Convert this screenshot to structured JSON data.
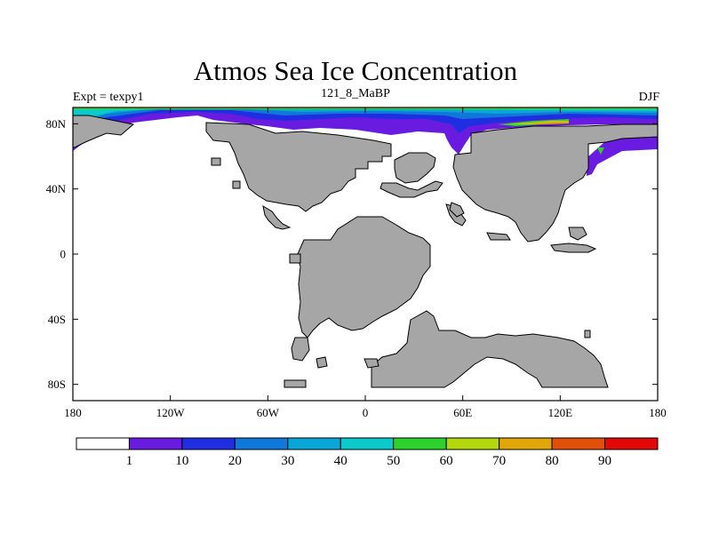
{
  "title": "Atmos Sea Ice Concentration",
  "left_label": "Expt = texpy1",
  "center_label": "121_8_MaBP",
  "right_label": "DJF",
  "x_ticks": [
    {
      "value": -180,
      "label": "180"
    },
    {
      "value": -120,
      "label": "120W"
    },
    {
      "value": -60,
      "label": "60W"
    },
    {
      "value": 0,
      "label": "0"
    },
    {
      "value": 60,
      "label": "60E"
    },
    {
      "value": 120,
      "label": "120E"
    },
    {
      "value": 180,
      "label": "180"
    }
  ],
  "y_ticks": [
    {
      "value": 80,
      "label": "80N"
    },
    {
      "value": 40,
      "label": "40N"
    },
    {
      "value": 0,
      "label": "0"
    },
    {
      "value": -40,
      "label": "40S"
    },
    {
      "value": -80,
      "label": "80S"
    }
  ],
  "lon_range": [
    -180,
    180
  ],
  "lat_range": [
    -90,
    90
  ],
  "colors": {
    "land": "#a6a6a6",
    "ocean": "#ffffff"
  },
  "colorbar": {
    "colors": [
      "#ffffff",
      "#6a1be0",
      "#1e2ee0",
      "#0f78d8",
      "#0aa6d8",
      "#0ccacb",
      "#2ed22e",
      "#b4d80e",
      "#e0a60a",
      "#e0500a",
      "#e00808"
    ],
    "labels": [
      "1",
      "10",
      "20",
      "30",
      "40",
      "50",
      "60",
      "70",
      "80",
      "90"
    ]
  }
}
